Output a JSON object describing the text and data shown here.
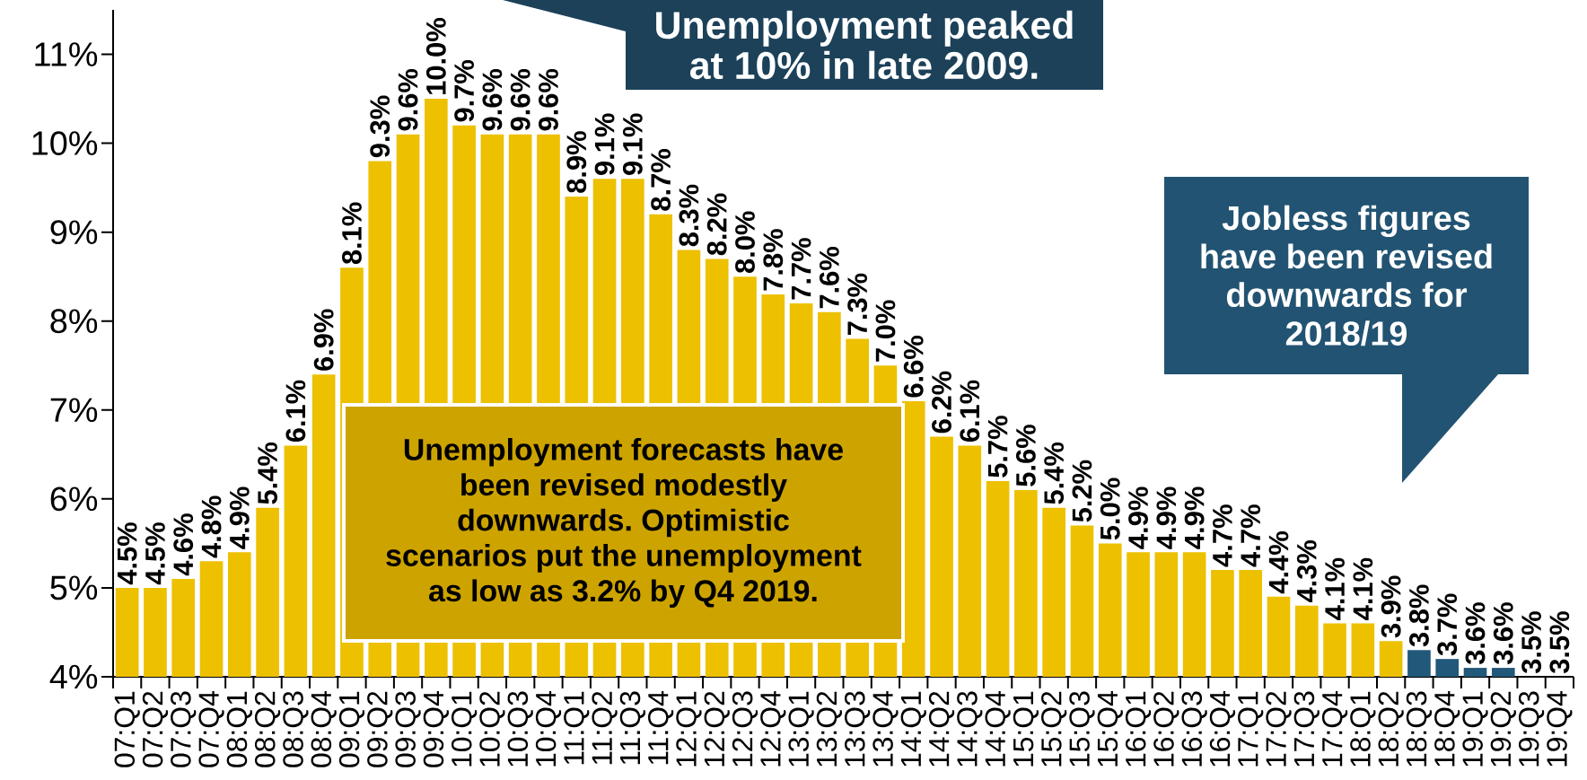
{
  "chart_data": {
    "type": "bar",
    "categories": [
      "07:Q1",
      "07:Q2",
      "07:Q3",
      "07:Q4",
      "08:Q1",
      "08:Q2",
      "08:Q3",
      "08:Q4",
      "09:Q1",
      "09:Q2",
      "09:Q3",
      "09:Q4",
      "10:Q1",
      "10:Q2",
      "10:Q3",
      "10:Q4",
      "11:Q1",
      "11:Q2",
      "11:Q3",
      "11:Q4",
      "12:Q1",
      "12:Q2",
      "12:Q3",
      "12:Q4",
      "13:Q1",
      "13:Q2",
      "13:Q3",
      "13:Q4",
      "14:Q1",
      "14:Q2",
      "14:Q3",
      "14:Q4",
      "15:Q1",
      "15:Q2",
      "15:Q3",
      "15:Q4",
      "16:Q1",
      "16:Q2",
      "16:Q3",
      "16:Q4",
      "17:Q1",
      "17:Q2",
      "17:Q3",
      "17:Q4",
      "18:Q1",
      "18:Q2",
      "18:Q3",
      "18:Q4",
      "19:Q1",
      "19:Q2",
      "19:Q3",
      "19:Q4"
    ],
    "values": [
      4.5,
      4.5,
      4.6,
      4.8,
      4.9,
      5.4,
      6.1,
      6.9,
      8.1,
      9.3,
      9.6,
      10.0,
      9.7,
      9.6,
      9.6,
      9.6,
      8.9,
      9.1,
      9.1,
      8.7,
      8.3,
      8.2,
      8.0,
      7.8,
      7.7,
      7.6,
      7.3,
      7.0,
      6.6,
      6.2,
      6.1,
      5.7,
      5.6,
      5.4,
      5.2,
      5.0,
      4.9,
      4.9,
      4.9,
      4.7,
      4.7,
      4.4,
      4.3,
      4.1,
      4.1,
      3.9,
      3.8,
      3.7,
      3.6,
      3.6,
      3.5,
      3.5
    ],
    "value_labels": [
      "4.5%",
      "4.5%",
      "4.6%",
      "4.8%",
      "4.9%",
      "5.4%",
      "6.1%",
      "6.9%",
      "8.1%",
      "9.3%",
      "9.6%",
      "10.0%",
      "9.7%",
      "9.6%",
      "9.6%",
      "9.6%",
      "8.9%",
      "9.1%",
      "9.1%",
      "8.7%",
      "8.3%",
      "8.2%",
      "8.0%",
      "7.8%",
      "7.7%",
      "7.6%",
      "7.3%",
      "7.0%",
      "6.6%",
      "6.2%",
      "6.1%",
      "5.7%",
      "5.6%",
      "5.4%",
      "5.2%",
      "5.0%",
      "4.9%",
      "4.9%",
      "4.9%",
      "4.7%",
      "4.7%",
      "4.4%",
      "4.3%",
      "4.1%",
      "4.1%",
      "3.9%",
      "3.8%",
      "3.7%",
      "3.6%",
      "3.6%",
      "3.5%",
      "3.5%"
    ],
    "colors": [
      "#edc000",
      "#edc000",
      "#edc000",
      "#edc000",
      "#edc000",
      "#edc000",
      "#edc000",
      "#edc000",
      "#edc000",
      "#edc000",
      "#edc000",
      "#edc000",
      "#edc000",
      "#edc000",
      "#edc000",
      "#edc000",
      "#edc000",
      "#edc000",
      "#edc000",
      "#edc000",
      "#edc000",
      "#edc000",
      "#edc000",
      "#edc000",
      "#edc000",
      "#edc000",
      "#edc000",
      "#edc000",
      "#edc000",
      "#edc000",
      "#edc000",
      "#edc000",
      "#edc000",
      "#edc000",
      "#edc000",
      "#edc000",
      "#edc000",
      "#edc000",
      "#edc000",
      "#edc000",
      "#edc000",
      "#edc000",
      "#edc000",
      "#edc000",
      "#edc000",
      "#edc000",
      "#22587a",
      "#22587a",
      "#22587a",
      "#22587a",
      "#22587a",
      "#22587a"
    ],
    "ylim": [
      3.5,
      11.0
    ],
    "yticks": [
      {
        "value": 3.5,
        "label": "4%"
      },
      {
        "value": 4.5,
        "label": "5%"
      },
      {
        "value": 5.5,
        "label": "6%"
      },
      {
        "value": 6.5,
        "label": "7%"
      },
      {
        "value": 7.5,
        "label": "8%"
      },
      {
        "value": 8.5,
        "label": "9%"
      },
      {
        "value": 9.5,
        "label": "10%"
      },
      {
        "value": 10.5,
        "label": "11%"
      }
    ],
    "annotations": [
      "Unemployment peaked at 10% in late 2009.",
      "Unemployment forecasts have been revised modestly downwards. Optimistic scenarios put the unemployment as low as 3.2% by Q4 2019.",
      "Jobless figures have been revised downwards for 2018/19"
    ]
  }
}
